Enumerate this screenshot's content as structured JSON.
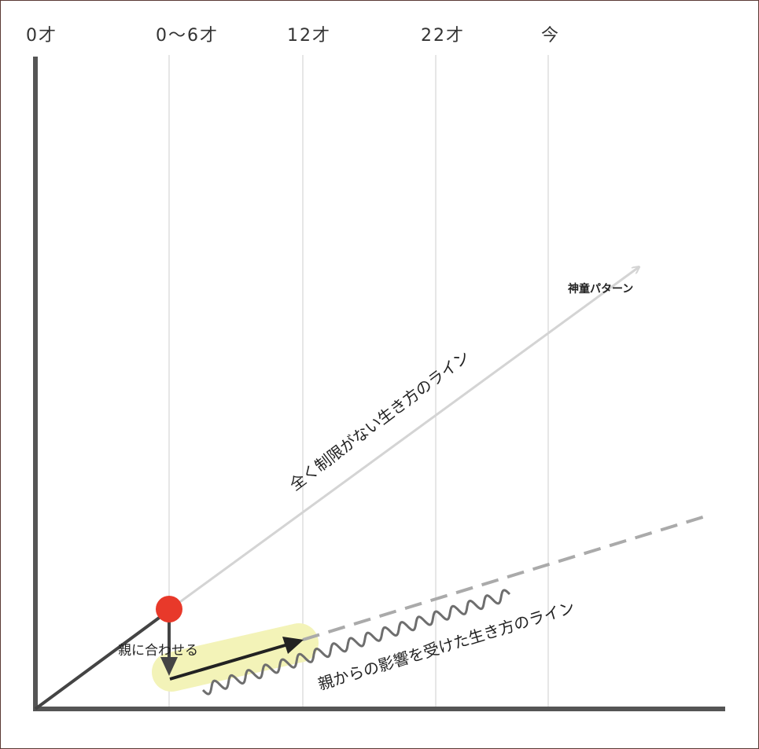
{
  "ages": [
    "0才",
    "0〜6才",
    "12才",
    "22才",
    "今"
  ],
  "labels": {
    "pattern_label": "神童パターン",
    "unlimited_line": "全く制限がない生き方のライン",
    "fit_parents": "親に合わせる",
    "influenced_line": "親からの影響を受けた生き方のライン"
  },
  "colors": {
    "frame": "#5a3a34",
    "axis": "#555555",
    "grid": "#cccccc",
    "dot": "#e8392a",
    "highlight": "#f3f3b8",
    "unlimited_arrow": "#d4d4d4",
    "dashed": "#aaaaaa",
    "wavy": "#6e6e6e",
    "arrow": "#222222"
  }
}
